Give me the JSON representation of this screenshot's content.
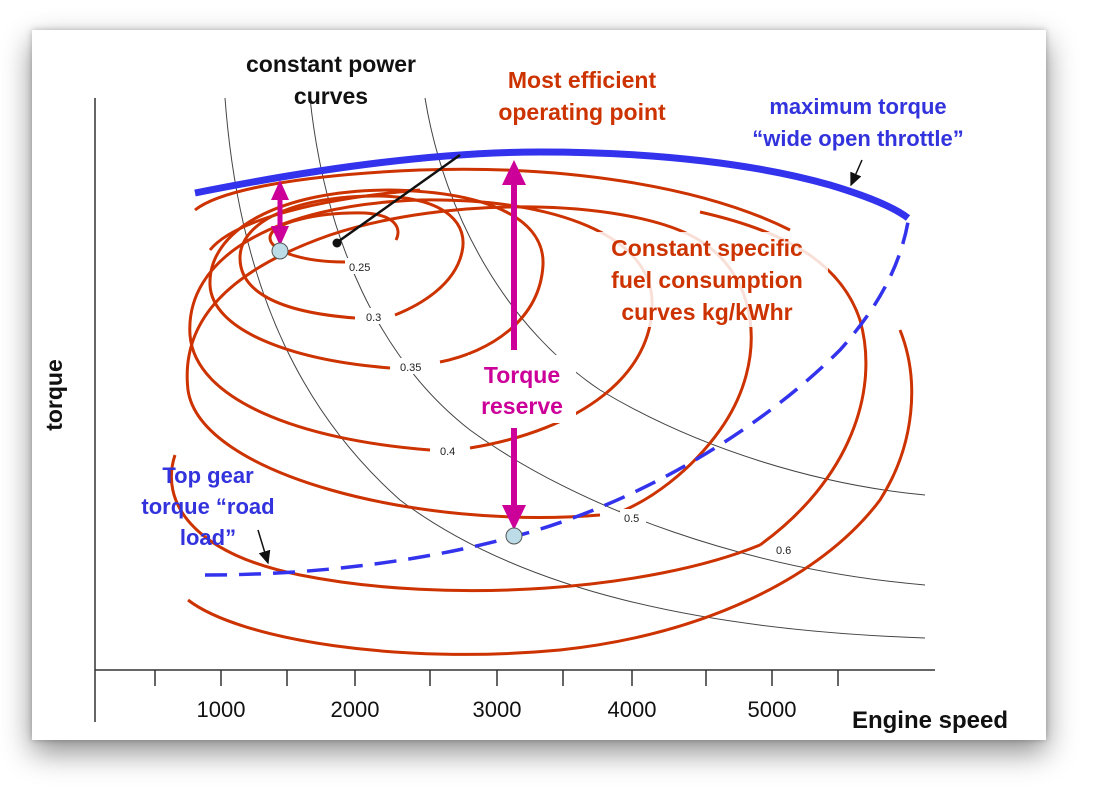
{
  "annotations": {
    "constant_power": [
      "constant power",
      "curves"
    ],
    "efficient_point": [
      "Most efficient",
      "operating point"
    ],
    "max_torque": [
      "maximum torque",
      "“wide open throttle”"
    ],
    "sfc": [
      "Constant specific",
      "fuel consumption",
      "curves kg/kWhr"
    ],
    "torque_reserve": [
      "Torque",
      "reserve"
    ],
    "road_load": [
      "Top gear",
      "torque “road",
      "load”"
    ]
  },
  "axes": {
    "x_label": "Engine speed",
    "y_label": "torque",
    "x_ticks": [
      "1000",
      "2000",
      "3000",
      "4000",
      "5000"
    ]
  },
  "contour_labels": [
    "0.25",
    "0.3",
    "0.35",
    "0.4",
    "0.5",
    "0.6"
  ],
  "colors": {
    "sfc_contour": "#cc3300",
    "wot_line": "#3333ee",
    "reserve_arrow": "#cc0099",
    "power_curve": "#333333",
    "annotation_blue": "#3333dd",
    "annotation_orange": "#cc3300"
  }
}
